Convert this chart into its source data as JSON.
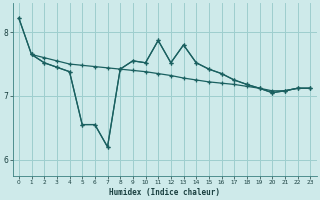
{
  "xlabel": "Humidex (Indice chaleur)",
  "bg_color": "#ceeaea",
  "grid_color": "#9ecece",
  "line_color": "#1a6060",
  "xlim": [
    -0.5,
    23.5
  ],
  "ylim": [
    5.75,
    8.45
  ],
  "yticks": [
    6,
    7,
    8
  ],
  "xticks": [
    0,
    1,
    2,
    3,
    4,
    5,
    6,
    7,
    8,
    9,
    10,
    11,
    12,
    13,
    14,
    15,
    16,
    17,
    18,
    19,
    20,
    21,
    22,
    23
  ],
  "s1_x": [
    0,
    1,
    2,
    3,
    4,
    5,
    6,
    7,
    8,
    9,
    10,
    11,
    12,
    13,
    14,
    15,
    16,
    17,
    18,
    19,
    20,
    21,
    22,
    23
  ],
  "s1_y": [
    8.22,
    7.65,
    7.6,
    7.55,
    7.5,
    7.48,
    7.46,
    7.44,
    7.42,
    7.4,
    7.38,
    7.35,
    7.32,
    7.28,
    7.25,
    7.22,
    7.2,
    7.18,
    7.15,
    7.12,
    7.08,
    7.08,
    7.12,
    7.12
  ],
  "s2_x": [
    0,
    1,
    2,
    3,
    4,
    5,
    6,
    7,
    8,
    9,
    10,
    11,
    12,
    13,
    14,
    15,
    16,
    17,
    18,
    19,
    20,
    21,
    22,
    23
  ],
  "s2_y": [
    8.22,
    7.65,
    7.52,
    7.45,
    7.38,
    6.55,
    6.55,
    6.2,
    7.42,
    7.55,
    7.52,
    7.87,
    7.52,
    7.8,
    7.52,
    7.42,
    7.35,
    7.25,
    7.18,
    7.12,
    7.05,
    7.08,
    7.12,
    7.12
  ],
  "s3_x": [
    1,
    2,
    3,
    4,
    5,
    6,
    7,
    8,
    9,
    10,
    11,
    12,
    13,
    14,
    15,
    16,
    17,
    18,
    19,
    20,
    21,
    22,
    23
  ],
  "s3_y": [
    7.65,
    7.52,
    7.45,
    7.38,
    6.55,
    6.55,
    6.2,
    7.42,
    7.55,
    7.52,
    7.87,
    7.52,
    7.8,
    7.52,
    7.42,
    7.35,
    7.25,
    7.18,
    7.12,
    7.05,
    7.08,
    7.12,
    7.12
  ]
}
